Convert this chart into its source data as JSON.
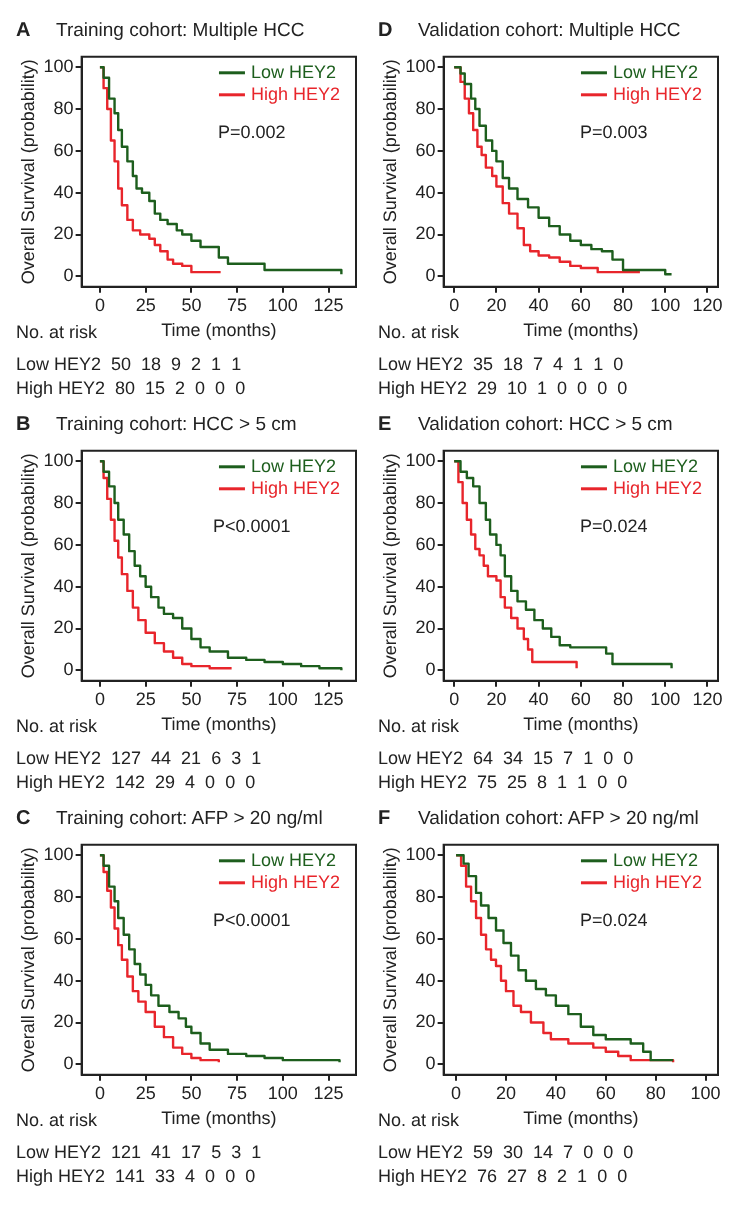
{
  "chart_data": [
    {
      "type": "step",
      "title": "Training cohort: Multiple HCC",
      "xlabel": "Time (months)",
      "ylabel": "Overall Survival (probability)",
      "xlim": [
        -10,
        140
      ],
      "xticks": [
        0,
        25,
        50,
        75,
        100,
        125
      ],
      "ylim": [
        -5,
        105
      ],
      "yticks": [
        0,
        20,
        40,
        60,
        80,
        100
      ],
      "legend": "top right",
      "annotations": [
        "A",
        "P=0.002",
        "No. at risk",
        "Low HEY2  50  18  9  2  1  1",
        "High HEY2  80  15  2  0  0  0"
      ],
      "series": [
        {
          "name": "Low HEY2",
          "color": "#1d5e1d",
          "x": [
            0,
            2,
            5,
            8,
            10,
            12,
            15,
            18,
            20,
            23,
            27,
            30,
            33,
            37,
            42,
            45,
            50,
            55,
            60,
            65,
            70,
            90,
            132
          ],
          "values": [
            100,
            95,
            85,
            78,
            70,
            62,
            55,
            48,
            42,
            40,
            36,
            30,
            27,
            25,
            22,
            20,
            17,
            14,
            14,
            9,
            6,
            3,
            1
          ]
        },
        {
          "name": "High HEY2",
          "color": "#e8252b",
          "x": [
            0,
            2,
            4,
            6,
            8,
            10,
            12,
            15,
            18,
            22,
            27,
            30,
            33,
            37,
            40,
            45,
            50,
            66
          ],
          "values": [
            100,
            90,
            80,
            65,
            55,
            42,
            34,
            27,
            22,
            20,
            18,
            15,
            12,
            8,
            6,
            5,
            2,
            2
          ]
        }
      ]
    },
    {
      "type": "step",
      "title": "Validation cohort: Multiple HCC",
      "xlabel": "Time (months)",
      "ylabel": "Overall Survival (probability)",
      "xlim": [
        -5,
        125
      ],
      "xticks": [
        0,
        20,
        40,
        60,
        80,
        100,
        120
      ],
      "ylim": [
        -5,
        105
      ],
      "yticks": [
        0,
        20,
        40,
        60,
        80,
        100
      ],
      "legend": "top right",
      "annotations": [
        "D",
        "P=0.003",
        "No. at risk",
        "Low HEY2  35  18  7  4  1  1  0",
        "High HEY2  29  10  1  0  0  0  0"
      ],
      "series": [
        {
          "name": "Low HEY2",
          "color": "#1d5e1d",
          "x": [
            0,
            3,
            5,
            8,
            10,
            12,
            15,
            18,
            20,
            23,
            26,
            30,
            35,
            40,
            45,
            50,
            55,
            60,
            65,
            70,
            75,
            80,
            90,
            100,
            103
          ],
          "values": [
            100,
            97,
            92,
            85,
            80,
            72,
            65,
            60,
            55,
            47,
            42,
            37,
            33,
            28,
            24,
            20,
            17,
            15,
            13,
            12,
            8,
            3,
            3,
            1,
            1
          ]
        },
        {
          "name": "High HEY2",
          "color": "#e8252b",
          "x": [
            0,
            3,
            5,
            7,
            9,
            11,
            13,
            15,
            18,
            20,
            23,
            26,
            30,
            33,
            36,
            40,
            45,
            50,
            55,
            60,
            68,
            88
          ],
          "values": [
            100,
            93,
            85,
            78,
            70,
            62,
            58,
            52,
            48,
            43,
            35,
            30,
            23,
            15,
            12,
            10,
            9,
            7,
            5,
            4,
            2,
            2
          ]
        }
      ]
    },
    {
      "type": "step",
      "title": "Training cohort: HCC > 5 cm",
      "xlabel": "Time (months)",
      "ylabel": "Overall Survival (probability)",
      "xlim": [
        -10,
        140
      ],
      "xticks": [
        0,
        25,
        50,
        75,
        100,
        125
      ],
      "ylim": [
        -5,
        105
      ],
      "yticks": [
        0,
        20,
        40,
        60,
        80,
        100
      ],
      "legend": "top right",
      "annotations": [
        "B",
        "P<0.0001",
        "No. at risk",
        "Low HEY2  127  44  21  6  3  1",
        "High HEY2  142  29  4  0  0  0"
      ],
      "series": [
        {
          "name": "Low HEY2",
          "color": "#1d5e1d",
          "x": [
            0,
            2,
            5,
            8,
            10,
            13,
            16,
            19,
            22,
            25,
            28,
            32,
            35,
            40,
            45,
            50,
            55,
            60,
            70,
            80,
            90,
            100,
            110,
            120,
            132
          ],
          "values": [
            100,
            95,
            88,
            80,
            72,
            65,
            57,
            50,
            45,
            40,
            35,
            30,
            27,
            25,
            20,
            15,
            11,
            9,
            6,
            5,
            4,
            3,
            2,
            1,
            0
          ]
        },
        {
          "name": "High HEY2",
          "color": "#e8252b",
          "x": [
            0,
            2,
            4,
            6,
            8,
            10,
            12,
            15,
            18,
            21,
            25,
            30,
            35,
            40,
            45,
            50,
            60,
            72
          ],
          "values": [
            100,
            92,
            82,
            72,
            62,
            54,
            46,
            38,
            30,
            24,
            18,
            13,
            9,
            6,
            3,
            2,
            1,
            1
          ]
        }
      ]
    },
    {
      "type": "step",
      "title": "Validation cohort: HCC > 5 cm",
      "xlabel": "Time (months)",
      "ylabel": "Overall Survival (probability)",
      "xlim": [
        -5,
        125
      ],
      "xticks": [
        0,
        20,
        40,
        60,
        80,
        100,
        120
      ],
      "ylim": [
        -5,
        105
      ],
      "yticks": [
        0,
        20,
        40,
        60,
        80,
        100
      ],
      "legend": "top right",
      "annotations": [
        "E",
        "P=0.024",
        "No. at risk",
        "Low HEY2  64  34  15  7  1  0  0",
        "High HEY2  75  25  8  1  1  0  0"
      ],
      "series": [
        {
          "name": "Low HEY2",
          "color": "#1d5e1d",
          "x": [
            0,
            3,
            6,
            9,
            12,
            15,
            17,
            20,
            22,
            24,
            27,
            30,
            34,
            38,
            42,
            46,
            50,
            55,
            70,
            72,
            75,
            100,
            103
          ],
          "values": [
            100,
            95,
            92,
            88,
            80,
            72,
            65,
            60,
            55,
            45,
            38,
            33,
            29,
            24,
            20,
            16,
            12,
            11,
            11,
            8,
            3,
            3,
            1
          ]
        },
        {
          "name": "High HEY2",
          "color": "#e8252b",
          "x": [
            0,
            2,
            4,
            6,
            8,
            10,
            12,
            14,
            16,
            20,
            22,
            24,
            27,
            30,
            33,
            35,
            37,
            55,
            58
          ],
          "values": [
            100,
            90,
            80,
            72,
            65,
            58,
            55,
            50,
            45,
            43,
            35,
            30,
            25,
            20,
            15,
            10,
            4,
            4,
            1
          ]
        }
      ]
    },
    {
      "type": "step",
      "title": "Training cohort: AFP > 20 ng/ml",
      "xlabel": "Time (months)",
      "ylabel": "Overall Survival (probability)",
      "xlim": [
        -10,
        140
      ],
      "xticks": [
        0,
        25,
        50,
        75,
        100,
        125
      ],
      "ylim": [
        -5,
        105
      ],
      "yticks": [
        0,
        20,
        40,
        60,
        80,
        100
      ],
      "legend": "top right",
      "annotations": [
        "C",
        "P<0.0001",
        "No. at risk",
        "Low HEY2  121  41  17  5  3  1",
        "High HEY2  141  33  4  0  0  0"
      ],
      "series": [
        {
          "name": "Low HEY2",
          "color": "#1d5e1d",
          "x": [
            0,
            2,
            5,
            8,
            10,
            13,
            16,
            19,
            22,
            25,
            28,
            32,
            38,
            43,
            47,
            50,
            55,
            60,
            70,
            80,
            90,
            100,
            110,
            131
          ],
          "values": [
            100,
            95,
            85,
            78,
            70,
            62,
            55,
            48,
            43,
            38,
            33,
            28,
            25,
            22,
            18,
            15,
            10,
            7,
            5,
            4,
            3,
            2,
            2,
            1
          ]
        },
        {
          "name": "High HEY2",
          "color": "#e8252b",
          "x": [
            0,
            2,
            4,
            6,
            8,
            10,
            12,
            15,
            18,
            21,
            25,
            30,
            35,
            40,
            45,
            50,
            55,
            65
          ],
          "values": [
            100,
            92,
            83,
            75,
            65,
            57,
            50,
            42,
            35,
            30,
            25,
            18,
            13,
            8,
            5,
            3,
            2,
            1
          ]
        }
      ]
    },
    {
      "type": "step",
      "title": "Validation cohort: AFP > 20 ng/ml",
      "xlabel": "Time (months)",
      "ylabel": "Overall Survival (probability)",
      "xlim": [
        -5,
        105
      ],
      "xticks": [
        0,
        20,
        40,
        60,
        80,
        100
      ],
      "ylim": [
        -5,
        105
      ],
      "yticks": [
        0,
        20,
        40,
        60,
        80,
        100
      ],
      "legend": "top right",
      "annotations": [
        "F",
        "P=0.024",
        "No. at risk",
        "Low HEY2  59  30  14  7  0  0  0",
        "High HEY2  76  27  8  2  1  0  0"
      ],
      "series": [
        {
          "name": "Low HEY2",
          "color": "#1d5e1d",
          "x": [
            0,
            3,
            5,
            8,
            10,
            13,
            16,
            19,
            22,
            25,
            28,
            32,
            36,
            40,
            45,
            50,
            55,
            60,
            70,
            75,
            78,
            87
          ],
          "values": [
            100,
            96,
            90,
            82,
            76,
            70,
            64,
            58,
            52,
            45,
            40,
            36,
            33,
            28,
            24,
            18,
            14,
            12,
            10,
            6,
            2,
            2
          ]
        },
        {
          "name": "High HEY2",
          "color": "#e8252b",
          "x": [
            0,
            2,
            4,
            6,
            8,
            10,
            12,
            14,
            16,
            18,
            20,
            23,
            26,
            30,
            35,
            38,
            45,
            55,
            60,
            65,
            70,
            87
          ],
          "values": [
            100,
            95,
            85,
            78,
            70,
            62,
            55,
            50,
            47,
            40,
            35,
            28,
            25,
            20,
            15,
            12,
            10,
            8,
            6,
            4,
            2,
            1
          ]
        }
      ]
    }
  ]
}
